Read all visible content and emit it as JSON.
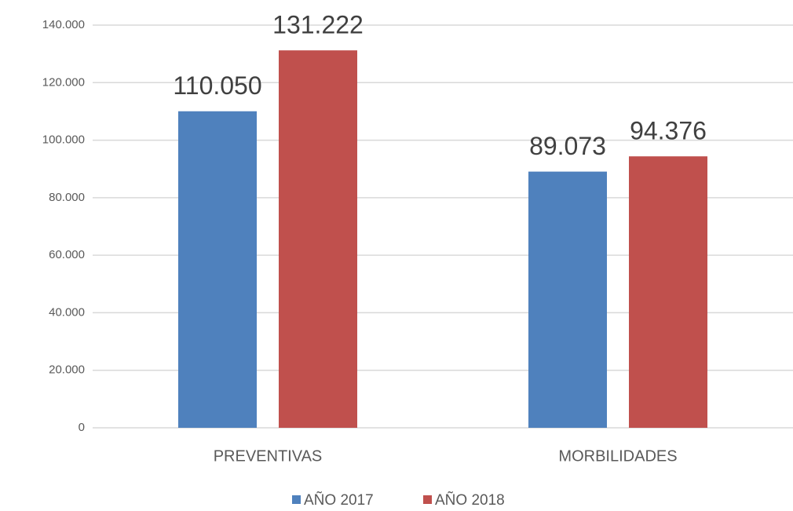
{
  "chart_data": {
    "type": "bar",
    "categories": [
      "PREVENTIVAS",
      "MORBILIDADES"
    ],
    "series": [
      {
        "name": "AÑO 2017",
        "color": "#4f81bd",
        "values": [
          110050,
          89073
        ],
        "value_labels": [
          "110.050",
          "89.073"
        ]
      },
      {
        "name": "AÑO 2018",
        "color": "#c0504d",
        "values": [
          131222,
          94376
        ],
        "value_labels": [
          "131.222",
          "94.376"
        ]
      }
    ],
    "ylim": [
      0,
      140000
    ],
    "yticks": [
      0,
      {
        "value": 20000,
        "label": "20.000"
      },
      {
        "value": 40000,
        "label": "40.000"
      },
      {
        "value": 60000,
        "label": "60.000"
      },
      {
        "value": 80000,
        "label": "80.000"
      },
      {
        "value": 100000,
        "label": "100.000"
      },
      {
        "value": 120000,
        "label": "120.000"
      },
      {
        "value": 140000,
        "label": "140.000"
      }
    ],
    "grid": true,
    "legend": "bottom"
  }
}
